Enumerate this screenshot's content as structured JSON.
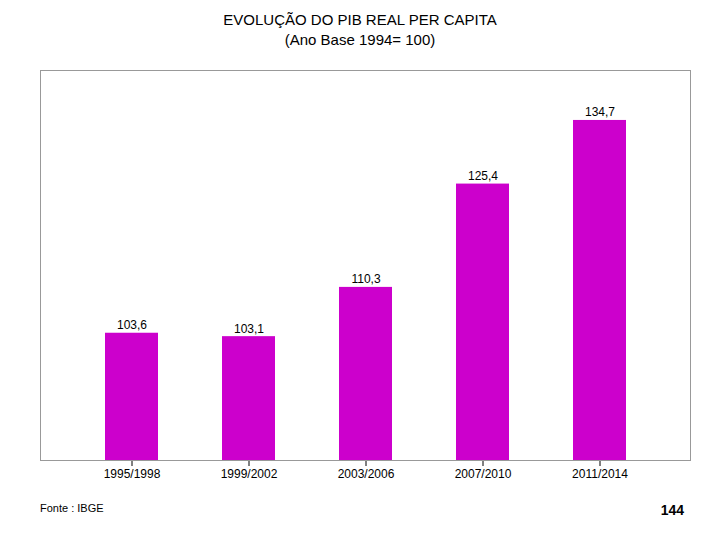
{
  "chart_data": {
    "type": "bar",
    "title": "EVOLUÇÃO DO PIB REAL PER CAPITA",
    "subtitle": "(Ano Base 1994= 100)",
    "categories": [
      "1995/1998",
      "1999/2002",
      "2003/2006",
      "2007/2010",
      "2011/2014"
    ],
    "values": [
      103.6,
      103.1,
      110.3,
      125.4,
      134.7
    ],
    "value_labels": [
      "103,6",
      "103,1",
      "110,3",
      "125,4",
      "134,7"
    ],
    "data_labels": true,
    "color": "#CC00CC",
    "ylim": [
      85,
      142
    ],
    "tick_labels": "x",
    "grid": false,
    "annotations": [
      "Fonte : IBGE",
      "144"
    ]
  }
}
